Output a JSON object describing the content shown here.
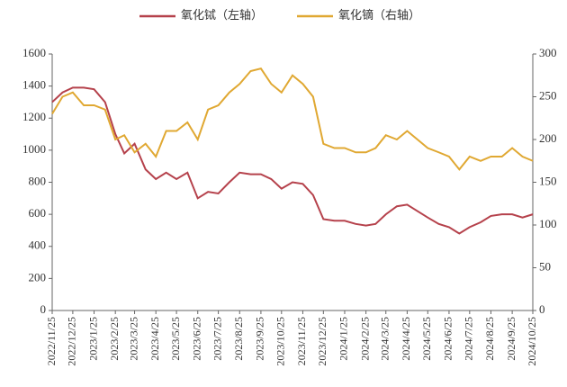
{
  "chart_data": {
    "type": "line",
    "x": [
      "2022/11/25",
      "2022/12/10",
      "2022/12/25",
      "2023/1/10",
      "2023/1/25",
      "2023/2/10",
      "2023/2/25",
      "2023/3/10",
      "2023/3/25",
      "2023/4/10",
      "2023/4/25",
      "2023/5/10",
      "2023/5/25",
      "2023/6/10",
      "2023/6/25",
      "2023/7/10",
      "2023/7/25",
      "2023/8/10",
      "2023/8/25",
      "2023/9/10",
      "2023/9/25",
      "2023/10/10",
      "2023/10/25",
      "2023/11/10",
      "2023/11/25",
      "2023/12/10",
      "2023/12/25",
      "2024/1/10",
      "2024/1/25",
      "2024/2/10",
      "2024/2/25",
      "2024/3/10",
      "2024/3/25",
      "2024/4/10",
      "2024/4/25",
      "2024/5/10",
      "2024/5/25",
      "2024/6/10",
      "2024/6/25",
      "2024/7/10",
      "2024/7/25",
      "2024/8/10",
      "2024/8/25",
      "2024/9/10",
      "2024/9/25",
      "2024/10/10",
      "2024/10/25"
    ],
    "series": [
      {
        "name": "氧化铽（左轴）",
        "color": "#b5414b",
        "values": [
          1300,
          1360,
          1390,
          1390,
          1380,
          1300,
          1100,
          980,
          1040,
          880,
          820,
          860,
          820,
          860,
          700,
          740,
          730,
          800,
          860,
          850,
          850,
          820,
          760,
          800,
          790,
          720,
          570,
          560,
          560,
          540,
          530,
          540,
          600,
          650,
          660,
          620,
          580,
          540,
          520,
          480,
          520,
          550,
          590,
          600,
          600,
          580,
          600
        ]
      },
      {
        "name": "氧化镝（右轴）",
        "color": "#e0a832",
        "axis": "y2",
        "values": [
          230,
          250,
          255,
          240,
          240,
          235,
          200,
          205,
          185,
          195,
          180,
          210,
          210,
          220,
          200,
          235,
          240,
          255,
          265,
          280,
          283,
          265,
          255,
          275,
          265,
          250,
          195,
          190,
          190,
          185,
          185,
          190,
          205,
          200,
          210,
          200,
          190,
          185,
          180,
          165,
          180,
          175,
          180,
          180,
          190,
          180,
          175
        ]
      }
    ],
    "xlim": [
      "2022/11/25",
      "2024/10/25"
    ],
    "xticks": [
      "2022/11/25",
      "2022/12/25",
      "2023/1/25",
      "2023/2/25",
      "2023/3/25",
      "2023/4/25",
      "2023/5/25",
      "2023/6/25",
      "2023/7/25",
      "2023/8/25",
      "2023/9/25",
      "2023/10/25",
      "2023/11/25",
      "2023/12/25",
      "2024/1/25",
      "2024/2/25",
      "2024/3/25",
      "2024/4/25",
      "2024/5/25",
      "2024/6/25",
      "2024/7/25",
      "2024/8/25",
      "2024/9/25",
      "2024/10/25"
    ],
    "ylim": [
      0,
      1600
    ],
    "yticks": [
      0,
      200,
      400,
      600,
      800,
      1000,
      1200,
      1400,
      1600
    ],
    "y2lim": [
      0,
      300
    ],
    "y2ticks": [
      0,
      50,
      100,
      150,
      200,
      250,
      300
    ],
    "grid": false,
    "legend": "top"
  }
}
